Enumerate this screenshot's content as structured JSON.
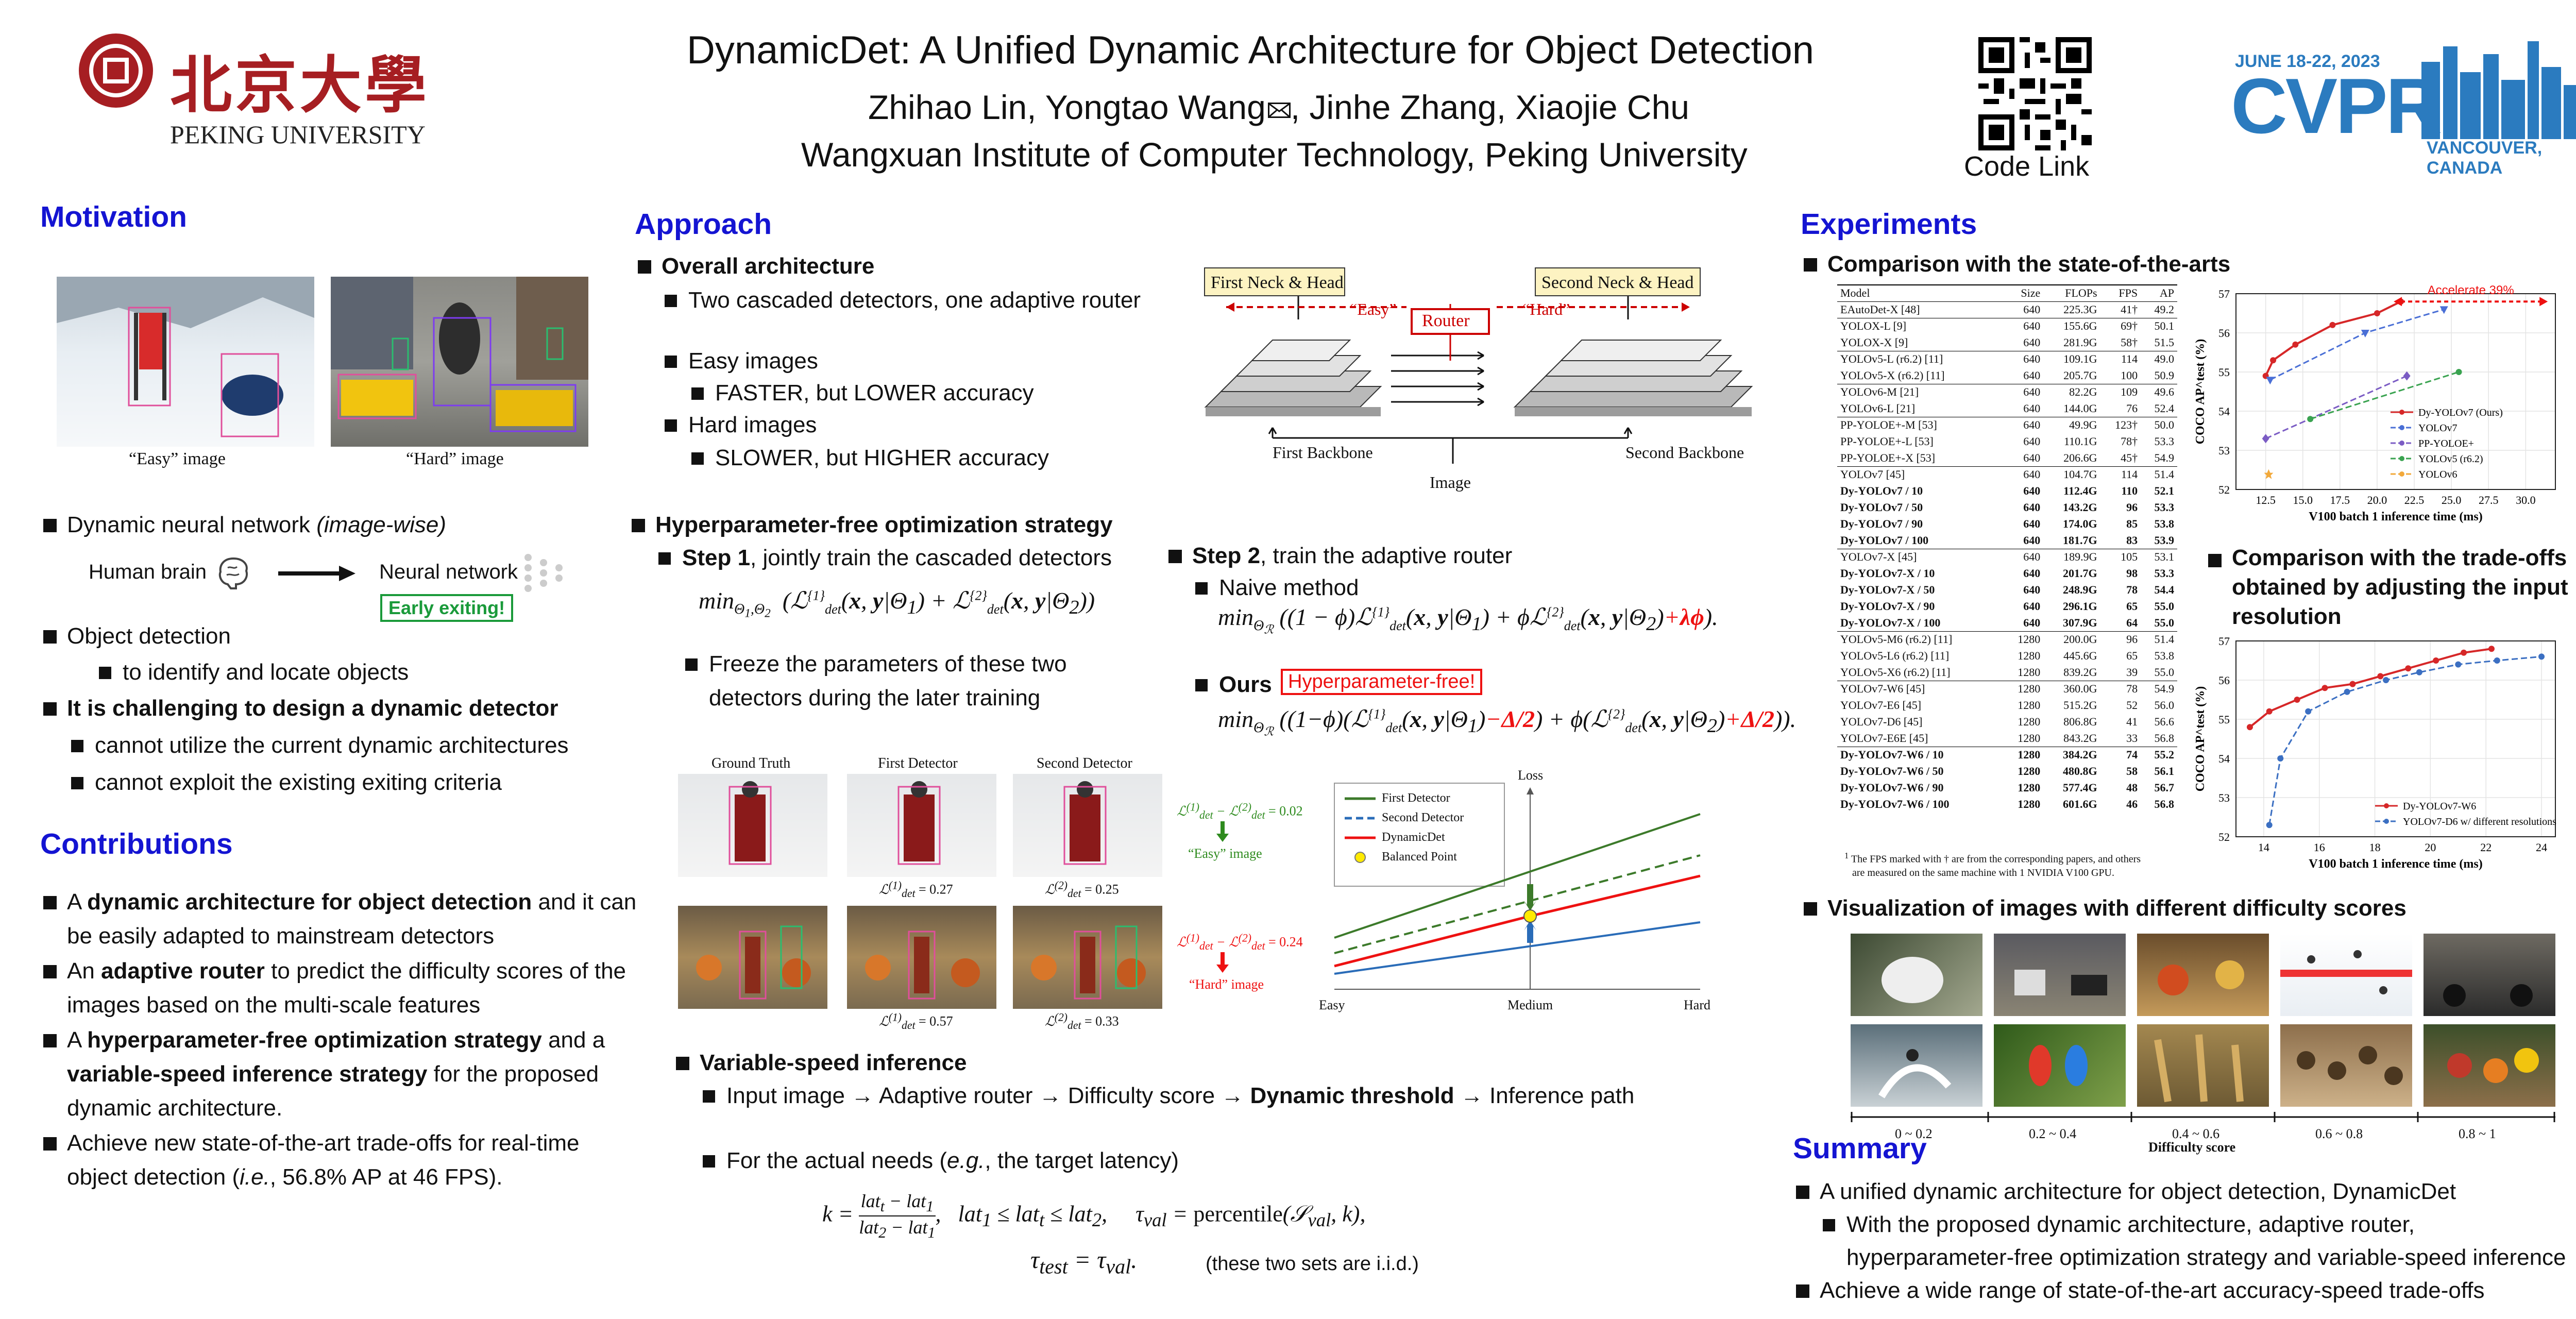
{
  "title": "DynamicDet: A Unified Dynamic Architecture for Object Detection",
  "authors": "Zhihao Lin, Yongtao Wang",
  "authors_rest": ", Jinhe Zhang, Xiaojie Chu",
  "affiliation": "Wangxuan Institute of Computer Technology, Peking University",
  "code_link": "Code Link",
  "pku": {
    "cn": "北京大學",
    "en": "PEKING UNIVERSITY"
  },
  "cvpr": {
    "date": "JUNE 18-22, 2023",
    "name": "CVPR",
    "place": "VANCOUVER, CANADA"
  },
  "motivation": {
    "heading": "Motivation",
    "easy_caption": "“Easy” image",
    "hard_caption": "“Hard” image",
    "b1_pre": "Dynamic neural network ",
    "b1_it": "(image-wise)",
    "brain": "Human brain",
    "nn": "Neural network",
    "early": "Early exiting!",
    "b2": "Object detection",
    "b2a": "to identify and locate objects",
    "b3": "It is challenging to design a dynamic detector",
    "b3a": "cannot utilize the current dynamic architectures",
    "b3b": "cannot exploit the existing exiting criteria"
  },
  "contributions": {
    "heading": "Contributions",
    "c1": [
      "A ",
      "dynamic architecture for object detection",
      " and it can be easily adapted to mainstream detectors"
    ],
    "c2": [
      "An ",
      "adaptive router",
      " to predict the difficulty scores of the images based on the multi-scale features"
    ],
    "c3": [
      "A ",
      "hyperparameter-free optimization strategy",
      " and a ",
      "variable-speed inference strategy",
      " for the proposed dynamic architecture."
    ],
    "c4": [
      "Achieve new state-of-the-art trade-offs for real-time object detection (",
      "i.e.",
      ", 56.8% AP at 46 FPS)."
    ]
  },
  "approach": {
    "heading": "Approach",
    "overall": "Overall architecture",
    "two": "Two cascaded detectors, one adaptive router",
    "easy": "Easy images",
    "easy_sub": "FASTER, but LOWER accuracy",
    "hard": "Hard images",
    "hard_sub": "SLOWER, but HIGHER accuracy",
    "hpf": "Hyperparameter-free optimization strategy",
    "step1_b": "Step 1",
    "step1": ", jointly train the cascaded detectors",
    "freeze": "Freeze the parameters of these two detectors during the later training",
    "step2_b": "Step 2",
    "step2": ", train the adaptive router",
    "naive": "Naive method",
    "ours": "Ours",
    "hpfree": "Hyperparameter-free!",
    "vsi": "Variable-speed inference",
    "vsi1_a": "Input image → Adaptive router → Difficulty score → ",
    "vsi1_b": "Dynamic threshold",
    "vsi1_c": " → Inference path",
    "vsi2_a": "For the actual needs (",
    "vsi2_b": "e.g.",
    ", ": "",
    "vsi2_c": ", the target latency)",
    "iid": "(these two sets are i.i.d.)",
    "diag": {
      "fnh": "First Neck & Head",
      "snh": "Second Neck & Head",
      "router": "Router",
      "easy": "“Easy”",
      "hard": "“Hard”",
      "fb": "First Backbone",
      "sb": "Second Backbone",
      "image": "Image"
    },
    "vis": {
      "gt": "Ground Truth",
      "fd": "First Detector",
      "sd": "Second Detector",
      "l1a": "= 0.27",
      "l2a": "= 0.25",
      "l1b": "= 0.57",
      "l2b": "= 0.33",
      "d1": "= 0.02",
      "d2": "= 0.24",
      "e": "“Easy” image",
      "h": "“Hard” image"
    },
    "loss": {
      "ylabel": "Loss",
      "x": [
        "Easy",
        "Medium",
        "Hard"
      ],
      "legend": [
        "First Detector",
        "Second Detector",
        "DynamicDet",
        "Balanced Point"
      ]
    }
  },
  "experiments": {
    "heading": "Experiments",
    "sota": "Comparison with the state-of-the-arts",
    "table_head": [
      "Model",
      "Size",
      "FLOPs",
      "FPS",
      "AP"
    ],
    "rows": [
      [
        "EAutoDet-X [48]",
        "640",
        "225.3G",
        "41†",
        "49.2",
        0,
        1
      ],
      [
        "YOLOX-L [9]",
        "640",
        "155.6G",
        "69†",
        "50.1",
        0,
        1
      ],
      [
        "YOLOX-X [9]",
        "640",
        "281.9G",
        "58†",
        "51.5",
        0,
        0
      ],
      [
        "YOLOv5-L (r6.2) [11]",
        "640",
        "109.1G",
        "114",
        "49.0",
        0,
        1
      ],
      [
        "YOLOv5-X (r6.2) [11]",
        "640",
        "205.7G",
        "100",
        "50.9",
        0,
        0
      ],
      [
        "YOLOv6-M [21]",
        "640",
        "82.2G",
        "109",
        "49.6",
        0,
        1
      ],
      [
        "YOLOv6-L [21]",
        "640",
        "144.0G",
        "76",
        "52.4",
        0,
        0
      ],
      [
        "PP-YOLOE+-M [53]",
        "640",
        "49.9G",
        "123†",
        "50.0",
        0,
        1
      ],
      [
        "PP-YOLOE+-L [53]",
        "640",
        "110.1G",
        "78†",
        "53.3",
        0,
        0
      ],
      [
        "PP-YOLOE+-X [53]",
        "640",
        "206.6G",
        "45†",
        "54.9",
        0,
        0
      ],
      [
        "YOLOv7 [45]",
        "640",
        "104.7G",
        "114",
        "51.4",
        0,
        1
      ],
      [
        "Dy-YOLOv7 / 10",
        "640",
        "112.4G",
        "110",
        "52.1",
        1,
        0
      ],
      [
        "Dy-YOLOv7 / 50",
        "640",
        "143.2G",
        "96",
        "53.3",
        1,
        0
      ],
      [
        "Dy-YOLOv7 / 90",
        "640",
        "174.0G",
        "85",
        "53.8",
        1,
        0
      ],
      [
        "Dy-YOLOv7 / 100",
        "640",
        "181.7G",
        "83",
        "53.9",
        1,
        0
      ],
      [
        "YOLOv7-X [45]",
        "640",
        "189.9G",
        "105",
        "53.1",
        0,
        1
      ],
      [
        "Dy-YOLOv7-X / 10",
        "640",
        "201.7G",
        "98",
        "53.3",
        1,
        0
      ],
      [
        "Dy-YOLOv7-X / 50",
        "640",
        "248.9G",
        "78",
        "54.4",
        1,
        0
      ],
      [
        "Dy-YOLOv7-X / 90",
        "640",
        "296.1G",
        "65",
        "55.0",
        1,
        0
      ],
      [
        "Dy-YOLOv7-X / 100",
        "640",
        "307.9G",
        "64",
        "55.0",
        1,
        0
      ],
      [
        "YOLOv5-M6 (r6.2) [11]",
        "1280",
        "200.0G",
        "96",
        "51.4",
        0,
        1
      ],
      [
        "YOLOv5-L6 (r6.2) [11]",
        "1280",
        "445.6G",
        "65",
        "53.8",
        0,
        0
      ],
      [
        "YOLOv5-X6 (r6.2) [11]",
        "1280",
        "839.2G",
        "39",
        "55.0",
        0,
        0
      ],
      [
        "YOLOv7-W6 [45]",
        "1280",
        "360.0G",
        "78",
        "54.9",
        0,
        1
      ],
      [
        "YOLOv7-E6 [45]",
        "1280",
        "515.2G",
        "52",
        "56.0",
        0,
        0
      ],
      [
        "YOLOv7-D6 [45]",
        "1280",
        "806.8G",
        "41",
        "56.6",
        0,
        0
      ],
      [
        "YOLOv7-E6E [45]",
        "1280",
        "843.2G",
        "33",
        "56.8",
        0,
        0
      ],
      [
        "Dy-YOLOv7-W6 / 10",
        "1280",
        "384.2G",
        "74",
        "55.2",
        1,
        1
      ],
      [
        "Dy-YOLOv7-W6 / 50",
        "1280",
        "480.8G",
        "58",
        "56.1",
        1,
        0
      ],
      [
        "Dy-YOLOv7-W6 / 90",
        "1280",
        "577.4G",
        "48",
        "56.7",
        1,
        0
      ],
      [
        "Dy-YOLOv7-W6 / 100",
        "1280",
        "601.6G",
        "46",
        "56.8",
        1,
        0
      ]
    ],
    "footnote1": "The FPS marked with † are from the corresponding papers, and others",
    "footnote2": "are measured on the same machine with 1 NVIDIA V100 GPU.",
    "tradeoff": "Comparison with the trade-offs obtained by adjusting the input resolution",
    "vis": "Visualization of images with different difficulty scores",
    "bins": [
      "0 ~ 0.2",
      "0.2 ~ 0.4",
      "0.4 ~ 0.6",
      "0.6 ~ 0.8",
      "0.8 ~ 1"
    ],
    "bins_label": "Difficulty score"
  },
  "chart_data": [
    {
      "type": "line",
      "title": "",
      "xlabel": "V100 batch 1 inference time (ms)",
      "ylabel": "COCO AP^test (%)",
      "xlim": [
        10.5,
        32
      ],
      "ylim": [
        52,
        57
      ],
      "xticks": [
        "12.5",
        "15.0",
        "17.5",
        "20.0",
        "22.5",
        "25.0",
        "27.5",
        "30.0"
      ],
      "yticks": [
        "52",
        "53",
        "54",
        "55",
        "56",
        "57"
      ],
      "annotation": "Accelerate 39%",
      "series": [
        {
          "name": "Dy-YOLOv7 (Ours)",
          "color": "#d62728",
          "points": [
            [
              12.5,
              54.9
            ],
            [
              13.0,
              55.3
            ],
            [
              14.5,
              55.7
            ],
            [
              17.0,
              56.2
            ],
            [
              20.0,
              56.5
            ],
            [
              21.6,
              56.8
            ]
          ]
        },
        {
          "name": "YOLOv7",
          "color": "#4a6fd6",
          "points": [
            [
              12.8,
              54.8
            ],
            [
              19.2,
              56.0
            ],
            [
              24.5,
              56.6
            ]
          ]
        },
        {
          "name": "PP-YOLOE+",
          "color": "#7b5cc4",
          "points": [
            [
              12.5,
              53.3
            ],
            [
              22.0,
              54.9
            ]
          ]
        },
        {
          "name": "YOLOv5 (r6.2)",
          "color": "#3aa350",
          "points": [
            [
              15.5,
              53.8
            ],
            [
              25.5,
              55.0
            ]
          ]
        },
        {
          "name": "YOLOv6",
          "color": "#f2a93b",
          "points": [
            [
              12.7,
              52.4
            ]
          ]
        }
      ]
    },
    {
      "type": "line",
      "title": "",
      "xlabel": "V100 batch 1 inference time (ms)",
      "ylabel": "COCO AP^test (%)",
      "xlim": [
        13,
        24.5
      ],
      "ylim": [
        52,
        57
      ],
      "xticks": [
        "14",
        "16",
        "18",
        "20",
        "22",
        "24"
      ],
      "yticks": [
        "52",
        "53",
        "54",
        "55",
        "56",
        "57"
      ],
      "series": [
        {
          "name": "Dy-YOLOv7-W6",
          "color": "#d62728",
          "points": [
            [
              13.5,
              54.8
            ],
            [
              14.2,
              55.2
            ],
            [
              15.2,
              55.5
            ],
            [
              16.2,
              55.8
            ],
            [
              17.2,
              55.9
            ],
            [
              18.2,
              56.1
            ],
            [
              19.2,
              56.3
            ],
            [
              20.2,
              56.5
            ],
            [
              21.2,
              56.7
            ],
            [
              22.2,
              56.8
            ]
          ]
        },
        {
          "name": "YOLOv7-D6 w/ different resolutions",
          "color": "#3b6fc2",
          "points": [
            [
              14.2,
              52.3
            ],
            [
              14.6,
              54.0
            ],
            [
              15.6,
              55.2
            ],
            [
              17.0,
              55.7
            ],
            [
              18.4,
              56.0
            ],
            [
              19.6,
              56.2
            ],
            [
              21.0,
              56.4
            ],
            [
              22.4,
              56.5
            ],
            [
              24.0,
              56.6
            ]
          ]
        }
      ]
    }
  ],
  "summary": {
    "heading": "Summary",
    "s1": "A unified dynamic architecture for object detection, DynamicDet",
    "s1a": "With the proposed dynamic architecture, adaptive router,",
    "s1b": "hyperparameter-free optimization strategy and variable-speed inference",
    "s2": "Achieve a wide range of state-of-the-art accuracy-speed trade-offs"
  }
}
